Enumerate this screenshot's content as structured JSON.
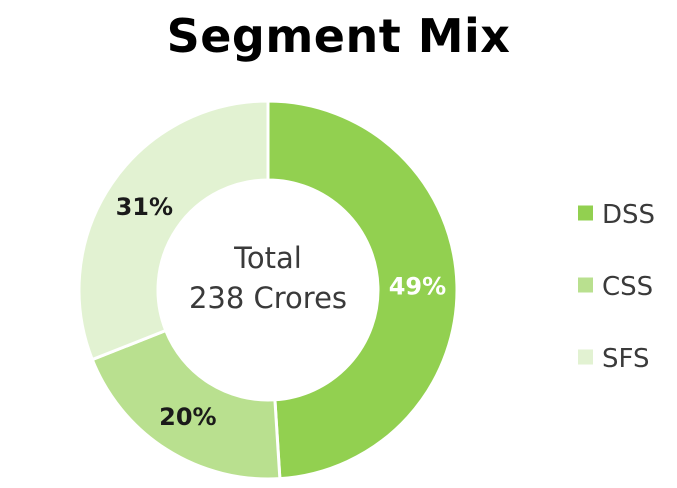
{
  "chart_data": {
    "type": "pie",
    "title": "Segment Mix",
    "center_text": [
      "Total",
      "238 Crores"
    ],
    "categories": [
      "DSS",
      "CSS",
      "SFS"
    ],
    "values": [
      49,
      20,
      31
    ],
    "labels": [
      "49%",
      "20%",
      "31%"
    ],
    "colors": [
      "#92d050",
      "#b9e08f",
      "#e2f2d2"
    ],
    "label_colors": [
      "#ffffff",
      "#1a1a1a",
      "#1a1a1a"
    ],
    "legend_position": "right"
  }
}
